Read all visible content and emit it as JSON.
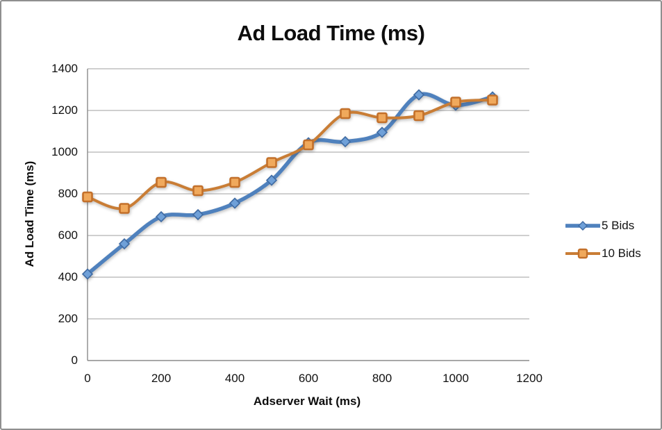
{
  "figure": {
    "background": "#ffffff",
    "border_color": "#8f8f8f"
  },
  "chart_data": {
    "type": "line",
    "title": "Ad Load Time (ms)",
    "xlabel": "Adserver Wait (ms)",
    "ylabel": "Ad Load Time (ms)",
    "x": [
      0,
      100,
      200,
      300,
      400,
      500,
      600,
      700,
      800,
      900,
      1000,
      1100
    ],
    "series": [
      {
        "name": "5 Bids",
        "marker": "diamond",
        "line_color": "#4f81bd",
        "marker_fill": "#6fa0d8",
        "marker_stroke": "#3f6ba3",
        "line_width": 5.5,
        "values": [
          415,
          560,
          690,
          700,
          755,
          865,
          1045,
          1050,
          1095,
          1275,
          1225,
          1265
        ]
      },
      {
        "name": "10 Bids",
        "marker": "square",
        "line_color": "#c97d35",
        "marker_fill": "#f0a95c",
        "marker_stroke": "#c3702a",
        "line_width": 4,
        "values": [
          785,
          730,
          855,
          815,
          855,
          950,
          1035,
          1185,
          1165,
          1175,
          1240,
          1250
        ]
      }
    ],
    "xlim": [
      0,
      1200
    ],
    "ylim": [
      0,
      1400
    ],
    "xticks": [
      0,
      200,
      400,
      600,
      800,
      1000,
      1200
    ],
    "yticks": [
      0,
      200,
      400,
      600,
      800,
      1000,
      1200,
      1400
    ],
    "grid": true,
    "gridline_color": "#b2b2b2",
    "axis_color": "#8a8a8a",
    "smooth": true,
    "legend_position": "right"
  }
}
